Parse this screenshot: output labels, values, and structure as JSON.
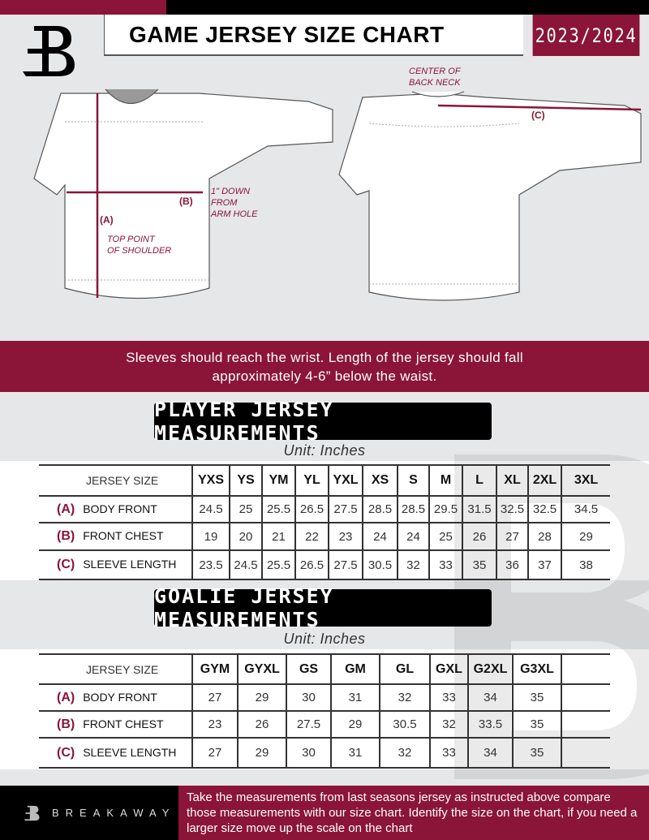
{
  "header": {
    "title": "GAME JERSEY SIZE CHART",
    "season": "2023/2024"
  },
  "colors": {
    "brand": "#8a1538",
    "dark": "#000000",
    "background": "#e6e7e9"
  },
  "diagram": {
    "front_labels": {
      "a": "(A)",
      "b": "(B)",
      "a_note_1": "TOP POINT",
      "a_note_2": "OF SHOULDER",
      "b_note_1": "1\" DOWN",
      "b_note_2": "FROM",
      "b_note_3": "ARM HOLE"
    },
    "back_labels": {
      "c": "(C)",
      "c_note_1": "CENTER OF",
      "c_note_2": "BACK NECK"
    }
  },
  "banner": {
    "line1": "Sleeves should reach the wrist. Length of the jersey should fall",
    "line2": "approximately 4-6” below the waist."
  },
  "player": {
    "title": "PLAYER JERSEY MEASUREMENTS",
    "unit": "Unit: Inches",
    "size_label": "JERSEY SIZE",
    "sizes": [
      "YXS",
      "YS",
      "YM",
      "YL",
      "YXL",
      "XS",
      "S",
      "M",
      "L",
      "XL",
      "2XL",
      "3XL"
    ],
    "rows": [
      {
        "letter": "(A)",
        "label": "BODY FRONT",
        "values": [
          "24.5",
          "25",
          "25.5",
          "26.5",
          "27.5",
          "28.5",
          "28.5",
          "29.5",
          "31.5",
          "32.5",
          "32.5",
          "34.5"
        ]
      },
      {
        "letter": "(B)",
        "label": "FRONT CHEST",
        "values": [
          "19",
          "20",
          "21",
          "22",
          "23",
          "24",
          "24",
          "25",
          "26",
          "27",
          "28",
          "29"
        ]
      },
      {
        "letter": "(C)",
        "label": "SLEEVE LENGTH",
        "values": [
          "23.5",
          "24.5",
          "25.5",
          "26.5",
          "27.5",
          "30.5",
          "32",
          "33",
          "35",
          "36",
          "37",
          "38"
        ]
      }
    ]
  },
  "goalie": {
    "title": "GOALIE JERSEY MEASUREMENTS",
    "unit": "Unit: Inches",
    "size_label": "JERSEY SIZE",
    "sizes": [
      "GYM",
      "GYXL",
      "GS",
      "GM",
      "GL",
      "GXL",
      "G2XL",
      "G3XL",
      ""
    ],
    "rows": [
      {
        "letter": "(A)",
        "label": "BODY FRONT",
        "values": [
          "27",
          "29",
          "30",
          "31",
          "32",
          "33",
          "34",
          "35",
          ""
        ]
      },
      {
        "letter": "(B)",
        "label": "FRONT CHEST",
        "values": [
          "23",
          "26",
          "27.5",
          "29",
          "30.5",
          "32",
          "33.5",
          "35",
          ""
        ]
      },
      {
        "letter": "(C)",
        "label": "SLEEVE LENGTH",
        "values": [
          "27",
          "29",
          "30",
          "31",
          "32",
          "33",
          "34",
          "35",
          ""
        ]
      }
    ]
  },
  "footer": {
    "brand": "BREAKAWAY",
    "text": "Take the measurements from last seasons jersey as instructed above compare those measurements  with our size chart. Identify the size on the chart, if you need a larger size move up the scale on the chart"
  }
}
